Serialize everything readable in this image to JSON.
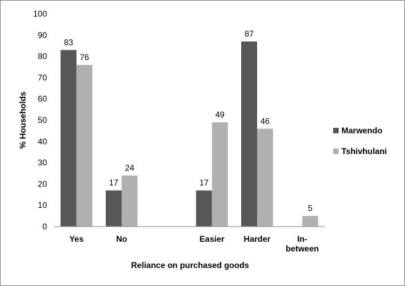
{
  "chart_data": {
    "type": "bar",
    "categories": [
      "Yes",
      "No",
      "",
      "Easier",
      "Harder",
      "In-between"
    ],
    "category_lines": [
      [
        "Yes"
      ],
      [
        "No"
      ],
      [
        ""
      ],
      [
        "Easier"
      ],
      [
        "Harder"
      ],
      [
        "In-",
        "between"
      ]
    ],
    "series": [
      {
        "name": "Marwendo",
        "color": "#575757",
        "values": [
          83,
          17,
          null,
          17,
          87,
          null
        ]
      },
      {
        "name": "Tshivhulani",
        "color": "#b0b0b0",
        "values": [
          76,
          24,
          null,
          49,
          46,
          5
        ]
      }
    ],
    "xlabel": "Reliance on purchased goods",
    "ylabel": "% Households",
    "ylim": [
      0,
      100
    ],
    "yticks": [
      0,
      10,
      20,
      30,
      40,
      50,
      60,
      70,
      80,
      90,
      100
    ],
    "grid": false,
    "legend": "right"
  }
}
